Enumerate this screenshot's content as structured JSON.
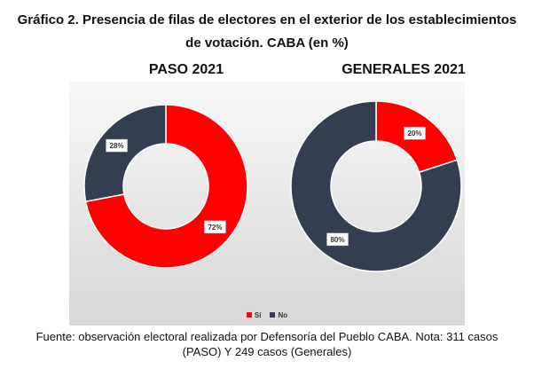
{
  "title_line1": "Gráfico 2. Presencia de filas de electores en el exterior de los establecimientos",
  "title_line2": "de votación. CABA (en %)",
  "chart_data": [
    {
      "type": "pie",
      "title": "PASO 2021",
      "categories": [
        "Sí",
        "No"
      ],
      "values": [
        72,
        28
      ],
      "labels": [
        "72%",
        "28%"
      ],
      "colors": [
        "#ff0000",
        "#333f50"
      ],
      "donut": true
    },
    {
      "type": "pie",
      "title": "GENERALES 2021",
      "categories": [
        "Sí",
        "No"
      ],
      "values": [
        20,
        80
      ],
      "labels": [
        "20%",
        "80%"
      ],
      "colors": [
        "#ff0000",
        "#333f50"
      ],
      "donut": true
    }
  ],
  "legend": [
    {
      "label": "Sí",
      "color": "#ff0000"
    },
    {
      "label": "No",
      "color": "#333f50"
    }
  ],
  "caption_line1": "Fuente: observación electoral realizada por Defensoría del Pueblo CABA. Nota: 311 casos",
  "caption_line2": "(PASO) Y 249 casos (Generales)"
}
